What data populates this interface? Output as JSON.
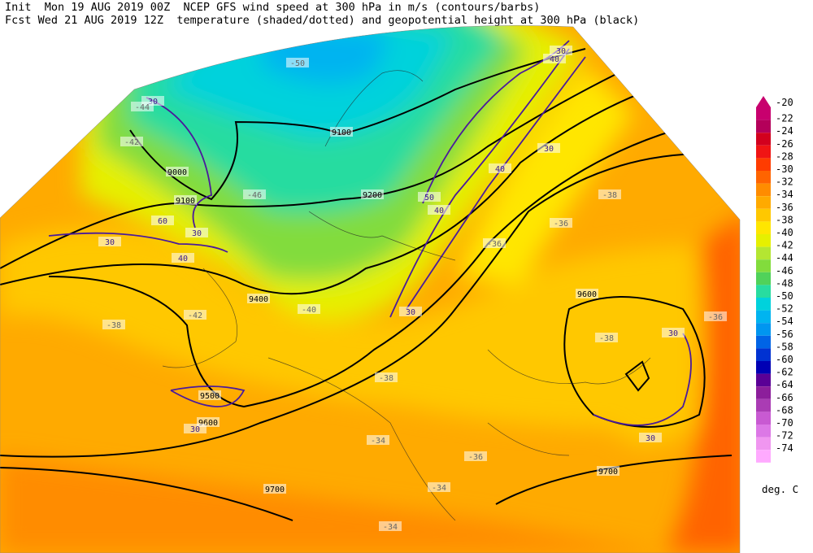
{
  "header": {
    "line1": {
      "init": "Init  Mon 19 AUG 2019 00Z",
      "desc": "NCEP GFS wind speed at 300 hPa in m/s (contours/barbs)"
    },
    "line2": {
      "fcst": "Fcst Wed 21 AUG 2019 12Z",
      "desc": "temperature (shaded/dotted) and geopotential height at 300 hPa (black)"
    }
  },
  "colorbar": {
    "levels": [
      -20,
      -22,
      -24,
      -26,
      -28,
      -30,
      -32,
      -34,
      -36,
      -38,
      -40,
      -42,
      -44,
      -46,
      -48,
      -50,
      -52,
      -54,
      -56,
      -58,
      -60,
      -62,
      -64,
      -66,
      -68,
      -70,
      -72,
      -74
    ],
    "colors": [
      "#c8006e",
      "#b4005a",
      "#d2001e",
      "#f01414",
      "#ff3c00",
      "#ff6400",
      "#ff8c00",
      "#ffaa00",
      "#ffc800",
      "#ffe600",
      "#e6f000",
      "#b4e632",
      "#82dc3c",
      "#50d25a",
      "#28dca0",
      "#00d2dc",
      "#00b4f0",
      "#0096f0",
      "#0064e6",
      "#0032d2",
      "#0000b4",
      "#5a0096",
      "#8c1e9b",
      "#aa3cb4",
      "#c85ad2",
      "#dc78e6",
      "#f096f0",
      "#ffaaff"
    ],
    "unit": "deg. C"
  },
  "map": {
    "height_labels": [
      "9000",
      "9100",
      "9200",
      "9100",
      "9400",
      "9500",
      "9600",
      "9700",
      "9700",
      "9600"
    ],
    "wind_labels": [
      "30",
      "30",
      "40",
      "60",
      "30",
      "30",
      "40",
      "50",
      "40",
      "30",
      "30",
      "30",
      "30",
      "30",
      "40"
    ],
    "temp_labels": [
      "-50",
      "-46",
      "-44",
      "-42",
      "-40",
      "-38",
      "-38",
      "-36",
      "-36",
      "-38",
      "-36",
      "-34",
      "-34",
      "-34",
      "-36",
      "-38",
      "-42"
    ]
  }
}
